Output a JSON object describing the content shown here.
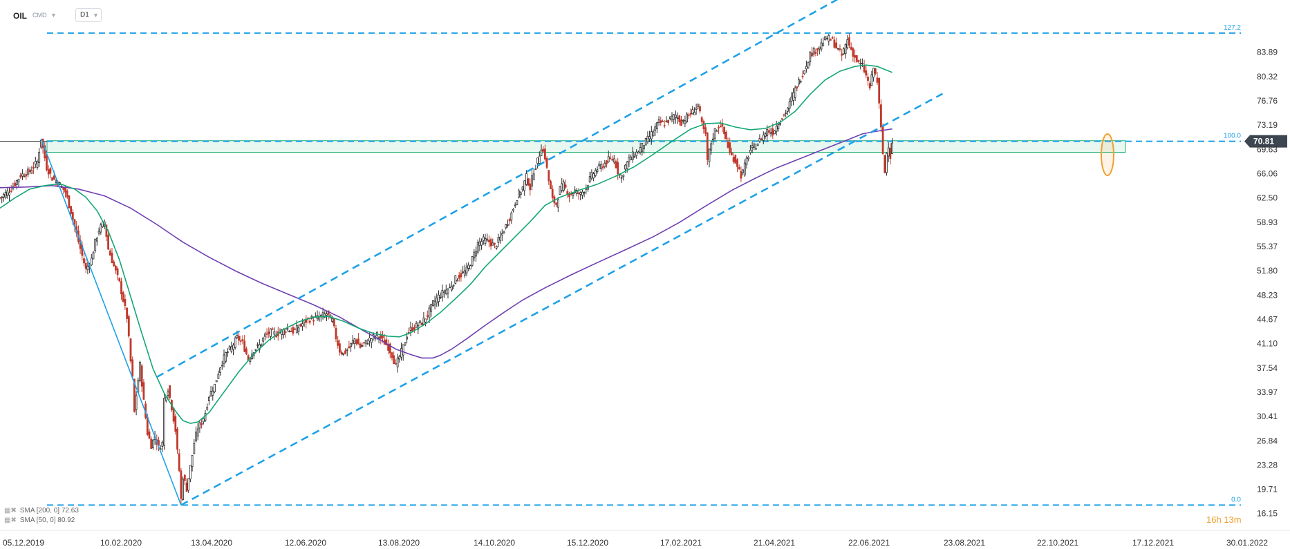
{
  "header": {
    "symbol": "OIL",
    "category": "CMD",
    "timeframe": "D1"
  },
  "legend": [
    {
      "text": "SMA [200, 0] 72.63",
      "color": "#6f3fb1"
    },
    {
      "text": "SMA [50, 0] 80.92",
      "color": "#13a774"
    }
  ],
  "colors": {
    "up": "#2b2b2b",
    "down": "#c0392b",
    "sma200": "#6f3fb1",
    "sma50": "#13a774",
    "trend": "#1da1e8",
    "zone_stroke": "#1fae74",
    "zone_fill": "#e8f7ef",
    "highlight": "#f0a030",
    "price_badge": "#3d4650"
  },
  "chart_data": {
    "type": "candlestick",
    "symbol": "OIL",
    "timeframe": "D1",
    "y_ticks": [
      83.89,
      80.32,
      76.76,
      73.19,
      69.63,
      66.06,
      62.5,
      58.93,
      55.37,
      51.8,
      48.23,
      44.67,
      41.1,
      37.54,
      33.97,
      30.41,
      26.84,
      23.28,
      19.71,
      16.15
    ],
    "ylim": [
      14.5,
      87.5
    ],
    "x_ticks": [
      "05.12.2019",
      "10.02.2020",
      "13.04.2020",
      "12.06.2020",
      "13.08.2020",
      "14.10.2020",
      "15.12.2020",
      "17.02.2021",
      "21.04.2021",
      "22.06.2021",
      "23.08.2021",
      "22.10.2021",
      "17.12.2021",
      "30.01.2022"
    ],
    "current_price": "70.81",
    "fib_levels": [
      {
        "label": "127.2",
        "price": 86.7
      },
      {
        "label": "100.0",
        "price": 70.81
      },
      {
        "label": "0.0",
        "price": 17.4
      }
    ],
    "timer_label": "16h 13m",
    "support_zone": [
      69.2,
      70.9
    ],
    "close_path": [
      [
        0,
        62.5
      ],
      [
        6,
        63.8
      ],
      [
        11,
        65.8
      ],
      [
        16,
        66.4
      ],
      [
        20,
        67.8
      ],
      [
        22,
        71.2
      ],
      [
        25,
        67.0
      ],
      [
        28,
        65.4
      ],
      [
        31,
        64.8
      ],
      [
        35,
        63.4
      ],
      [
        38,
        60.5
      ],
      [
        41,
        57.2
      ],
      [
        44,
        54.0
      ],
      [
        46,
        52.0
      ],
      [
        49,
        53.5
      ],
      [
        51,
        56.0
      ],
      [
        53,
        57.8
      ],
      [
        56,
        59.0
      ],
      [
        58,
        55.0
      ],
      [
        61,
        52.5
      ],
      [
        64,
        50.0
      ],
      [
        66,
        47.5
      ],
      [
        68,
        45.0
      ],
      [
        70,
        38.5
      ],
      [
        71,
        36.0
      ],
      [
        72,
        31.0
      ],
      [
        73,
        33.6
      ],
      [
        75,
        38.0
      ],
      [
        77,
        32.6
      ],
      [
        79,
        28.0
      ],
      [
        81,
        26.2
      ],
      [
        83,
        27.5
      ],
      [
        85,
        25.8
      ],
      [
        87,
        26.5
      ],
      [
        88,
        33.0
      ],
      [
        90,
        34.5
      ],
      [
        92,
        31.8
      ],
      [
        94,
        28.4
      ],
      [
        95,
        25.2
      ],
      [
        96,
        22.5
      ],
      [
        97,
        18.2
      ],
      [
        98,
        21.6
      ],
      [
        100,
        19.8
      ],
      [
        102,
        23.0
      ],
      [
        104,
        26.5
      ],
      [
        106,
        28.8
      ],
      [
        108,
        29.5
      ],
      [
        110,
        31.0
      ],
      [
        112,
        33.5
      ],
      [
        115,
        35.0
      ],
      [
        118,
        37.8
      ],
      [
        121,
        39.6
      ],
      [
        124,
        40.5
      ],
      [
        127,
        42.0
      ],
      [
        130,
        41.2
      ],
      [
        133,
        38.8
      ],
      [
        136,
        40.2
      ],
      [
        139,
        40.8
      ],
      [
        142,
        42.3
      ],
      [
        145,
        42.8
      ],
      [
        148,
        42.5
      ],
      [
        151,
        42.9
      ],
      [
        154,
        43.3
      ],
      [
        157,
        42.9
      ],
      [
        160,
        43.5
      ],
      [
        163,
        44.3
      ],
      [
        166,
        44.7
      ],
      [
        169,
        44.8
      ],
      [
        172,
        45.1
      ],
      [
        175,
        45.5
      ],
      [
        178,
        44.5
      ],
      [
        180,
        42.0
      ],
      [
        182,
        40.1
      ],
      [
        184,
        39.6
      ],
      [
        187,
        40.5
      ],
      [
        190,
        41.8
      ],
      [
        193,
        40.6
      ],
      [
        196,
        41.3
      ],
      [
        199,
        41.9
      ],
      [
        202,
        42.4
      ],
      [
        205,
        41.6
      ],
      [
        208,
        40.6
      ],
      [
        210,
        39.5
      ],
      [
        212,
        37.8
      ],
      [
        214,
        39.2
      ],
      [
        216,
        40.6
      ],
      [
        218,
        42.4
      ],
      [
        220,
        43.2
      ],
      [
        223,
        43.7
      ],
      [
        226,
        44.2
      ],
      [
        229,
        45.3
      ],
      [
        232,
        47.0
      ],
      [
        235,
        48.0
      ],
      [
        238,
        48.8
      ],
      [
        241,
        49.3
      ],
      [
        244,
        50.6
      ],
      [
        247,
        51.2
      ],
      [
        250,
        51.9
      ],
      [
        253,
        53.5
      ],
      [
        256,
        55.8
      ],
      [
        259,
        56.3
      ],
      [
        262,
        56.1
      ],
      [
        265,
        55.4
      ],
      [
        268,
        56.6
      ],
      [
        271,
        58.4
      ],
      [
        274,
        60.2
      ],
      [
        277,
        62.6
      ],
      [
        280,
        64.0
      ],
      [
        282,
        65.6
      ],
      [
        284,
        64.0
      ],
      [
        286,
        66.5
      ],
      [
        288,
        67.9
      ],
      [
        290,
        70.0
      ],
      [
        292,
        68.5
      ],
      [
        294,
        65.0
      ],
      [
        296,
        62.2
      ],
      [
        298,
        61.6
      ],
      [
        300,
        63.8
      ],
      [
        302,
        64.4
      ],
      [
        305,
        62.9
      ],
      [
        308,
        63.5
      ],
      [
        311,
        63.0
      ],
      [
        314,
        64.1
      ],
      [
        317,
        65.8
      ],
      [
        320,
        66.8
      ],
      [
        323,
        67.3
      ],
      [
        326,
        68.1
      ],
      [
        329,
        68.2
      ],
      [
        331,
        66.4
      ],
      [
        333,
        65.4
      ],
      [
        335,
        67.2
      ],
      [
        338,
        68.6
      ],
      [
        341,
        69.1
      ],
      [
        344,
        70.1
      ],
      [
        347,
        71.1
      ],
      [
        350,
        72.3
      ],
      [
        353,
        73.6
      ],
      [
        356,
        73.4
      ],
      [
        359,
        74.1
      ],
      [
        362,
        74.6
      ],
      [
        365,
        73.6
      ],
      [
        368,
        74.4
      ],
      [
        371,
        75.1
      ],
      [
        374,
        76.2
      ],
      [
        376,
        73.3
      ],
      [
        378,
        71.6
      ],
      [
        379,
        68.0
      ],
      [
        381,
        70.6
      ],
      [
        383,
        72.4
      ],
      [
        386,
        73.3
      ],
      [
        389,
        71.2
      ],
      [
        391,
        69.0
      ],
      [
        393,
        68.3
      ],
      [
        395,
        67.4
      ],
      [
        397,
        65.8
      ],
      [
        398,
        66.3
      ],
      [
        400,
        68.1
      ],
      [
        402,
        69.5
      ],
      [
        405,
        70.2
      ],
      [
        408,
        71.3
      ],
      [
        411,
        72.4
      ],
      [
        414,
        72.1
      ],
      [
        417,
        73.6
      ],
      [
        420,
        74.6
      ],
      [
        423,
        76.3
      ],
      [
        426,
        78.4
      ],
      [
        429,
        80.1
      ],
      [
        432,
        82.1
      ],
      [
        434,
        83.6
      ],
      [
        437,
        84.2
      ],
      [
        440,
        85.1
      ],
      [
        443,
        86.0
      ],
      [
        446,
        85.6
      ],
      [
        448,
        84.6
      ],
      [
        451,
        83.4
      ],
      [
        454,
        85.7
      ],
      [
        456,
        84.3
      ],
      [
        458,
        83.1
      ],
      [
        460,
        82.2
      ],
      [
        462,
        81.9
      ],
      [
        464,
        80.4
      ],
      [
        466,
        78.7
      ],
      [
        468,
        81.6
      ],
      [
        470,
        79.6
      ],
      [
        471,
        76.1
      ],
      [
        472,
        72.6
      ],
      [
        473,
        69.0
      ],
      [
        474,
        66.2
      ],
      [
        475,
        69.1
      ],
      [
        476,
        70.3
      ],
      [
        477,
        68.6
      ],
      [
        478,
        70.8
      ]
    ],
    "series": [
      {
        "name": "SMA [200, 0] 72.63",
        "points": [
          [
            0,
            64.0
          ],
          [
            14,
            64.1
          ],
          [
            28,
            64.3
          ],
          [
            42,
            63.8
          ],
          [
            56,
            62.8
          ],
          [
            70,
            61.0
          ],
          [
            84,
            58.6
          ],
          [
            98,
            56.0
          ],
          [
            112,
            53.8
          ],
          [
            126,
            51.8
          ],
          [
            140,
            50.0
          ],
          [
            154,
            48.4
          ],
          [
            168,
            46.8
          ],
          [
            182,
            45.0
          ],
          [
            196,
            42.8
          ],
          [
            204,
            41.6
          ],
          [
            212,
            40.3
          ],
          [
            220,
            39.5
          ],
          [
            226,
            39.0
          ],
          [
            232,
            39.0
          ],
          [
            236,
            39.4
          ],
          [
            242,
            40.3
          ],
          [
            250,
            41.8
          ],
          [
            260,
            43.8
          ],
          [
            270,
            45.7
          ],
          [
            280,
            47.5
          ],
          [
            292,
            49.3
          ],
          [
            306,
            51.2
          ],
          [
            320,
            53.0
          ],
          [
            336,
            55.0
          ],
          [
            350,
            56.8
          ],
          [
            364,
            58.9
          ],
          [
            378,
            61.3
          ],
          [
            392,
            63.6
          ],
          [
            404,
            65.3
          ],
          [
            416,
            66.9
          ],
          [
            428,
            68.2
          ],
          [
            440,
            69.5
          ],
          [
            452,
            70.8
          ],
          [
            462,
            71.9
          ],
          [
            470,
            72.3
          ],
          [
            478,
            72.63
          ]
        ]
      },
      {
        "name": "SMA [50, 0] 80.92",
        "points": [
          [
            0,
            61.0
          ],
          [
            8,
            62.5
          ],
          [
            16,
            63.8
          ],
          [
            24,
            64.3
          ],
          [
            32,
            64.6
          ],
          [
            40,
            63.8
          ],
          [
            46,
            62.6
          ],
          [
            52,
            60.6
          ],
          [
            58,
            57.6
          ],
          [
            64,
            53.4
          ],
          [
            70,
            48.0
          ],
          [
            76,
            42.6
          ],
          [
            82,
            37.4
          ],
          [
            88,
            33.8
          ],
          [
            94,
            31.2
          ],
          [
            98,
            29.8
          ],
          [
            102,
            29.4
          ],
          [
            106,
            29.6
          ],
          [
            112,
            31.0
          ],
          [
            120,
            34.0
          ],
          [
            128,
            37.0
          ],
          [
            136,
            39.6
          ],
          [
            144,
            41.6
          ],
          [
            152,
            43.2
          ],
          [
            160,
            44.3
          ],
          [
            168,
            45.0
          ],
          [
            176,
            45.1
          ],
          [
            184,
            44.4
          ],
          [
            192,
            43.4
          ],
          [
            200,
            42.6
          ],
          [
            208,
            42.2
          ],
          [
            214,
            42.1
          ],
          [
            220,
            42.7
          ],
          [
            228,
            44.0
          ],
          [
            236,
            45.7
          ],
          [
            244,
            47.7
          ],
          [
            252,
            49.8
          ],
          [
            260,
            52.4
          ],
          [
            268,
            54.6
          ],
          [
            276,
            56.8
          ],
          [
            284,
            59.0
          ],
          [
            292,
            61.4
          ],
          [
            300,
            62.6
          ],
          [
            310,
            63.6
          ],
          [
            320,
            64.5
          ],
          [
            330,
            65.7
          ],
          [
            340,
            67.1
          ],
          [
            350,
            68.9
          ],
          [
            360,
            70.8
          ],
          [
            370,
            72.6
          ],
          [
            378,
            73.4
          ],
          [
            386,
            73.5
          ],
          [
            394,
            72.9
          ],
          [
            402,
            72.5
          ],
          [
            410,
            72.7
          ],
          [
            418,
            73.6
          ],
          [
            426,
            75.2
          ],
          [
            434,
            77.7
          ],
          [
            442,
            79.8
          ],
          [
            450,
            81.1
          ],
          [
            458,
            81.8
          ],
          [
            464,
            82.0
          ],
          [
            470,
            81.8
          ],
          [
            478,
            80.92
          ]
        ]
      }
    ],
    "lines": [
      {
        "kind": "fib",
        "from": [
          0,
          86.7
        ],
        "to": [
          482,
          86.7
        ]
      },
      {
        "kind": "fib",
        "from": [
          0,
          70.81
        ],
        "to": [
          482,
          70.81
        ]
      },
      {
        "kind": "fib",
        "from": [
          0,
          17.4
        ],
        "to": [
          482,
          17.4
        ]
      },
      {
        "kind": "channel-lower",
        "from": [
          97,
          17.4
        ],
        "to": [
          505,
          77.8
        ]
      },
      {
        "kind": "channel-upper",
        "from": [
          84,
          36.2
        ],
        "to": [
          449,
          91.7
        ]
      },
      {
        "kind": "wave",
        "from": [
          22,
          71.2
        ],
        "to": [
          97,
          17.4
        ]
      }
    ],
    "x_range": [
      0,
      482
    ],
    "x_scale_px": 2.7,
    "plot_right": 1515
  }
}
